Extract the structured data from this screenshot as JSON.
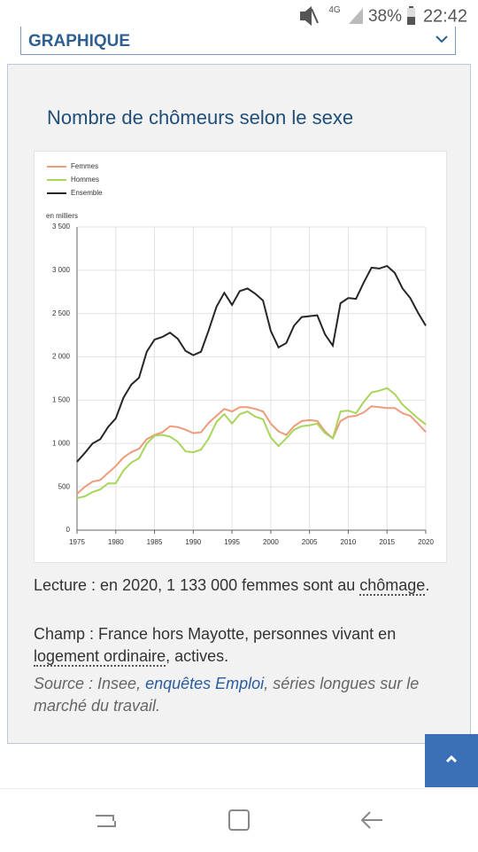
{
  "status_bar": {
    "network": "4G",
    "battery": "38%",
    "time": "22:42"
  },
  "dropdown": {
    "label": "GRAPHIQUE"
  },
  "chart_data": {
    "type": "line",
    "title": "Nombre de chômeurs selon le sexe",
    "y_unit": "en milliers",
    "x": [
      1975,
      1976,
      1977,
      1978,
      1979,
      1980,
      1981,
      1982,
      1983,
      1984,
      1985,
      1986,
      1987,
      1988,
      1989,
      1990,
      1991,
      1992,
      1993,
      1994,
      1995,
      1996,
      1997,
      1998,
      1999,
      2000,
      2001,
      2002,
      2003,
      2004,
      2005,
      2006,
      2007,
      2008,
      2009,
      2010,
      2011,
      2012,
      2013,
      2014,
      2015,
      2016,
      2017,
      2018,
      2019,
      2020
    ],
    "series": [
      {
        "name": "Femmes",
        "color": "#ee9b7b",
        "values": [
          420,
          500,
          560,
          580,
          660,
          740,
          840,
          900,
          940,
          1050,
          1100,
          1130,
          1200,
          1190,
          1160,
          1120,
          1130,
          1240,
          1320,
          1400,
          1370,
          1420,
          1420,
          1400,
          1370,
          1230,
          1140,
          1100,
          1200,
          1260,
          1270,
          1260,
          1140,
          1060,
          1260,
          1310,
          1320,
          1360,
          1430,
          1420,
          1410,
          1410,
          1350,
          1320,
          1230,
          1133
        ]
      },
      {
        "name": "Hommes",
        "color": "#a8d55c",
        "values": [
          370,
          390,
          440,
          470,
          540,
          540,
          690,
          780,
          830,
          1000,
          1090,
          1100,
          1080,
          1020,
          910,
          900,
          930,
          1060,
          1250,
          1340,
          1230,
          1340,
          1370,
          1310,
          1280,
          1070,
          970,
          1060,
          1160,
          1200,
          1210,
          1230,
          1120,
          1060,
          1370,
          1380,
          1350,
          1480,
          1590,
          1610,
          1640,
          1570,
          1450,
          1370,
          1290,
          1220
        ]
      },
      {
        "name": "Ensemble",
        "color": "#262626",
        "values": [
          790,
          890,
          1000,
          1050,
          1190,
          1290,
          1530,
          1680,
          1760,
          2060,
          2200,
          2230,
          2280,
          2210,
          2070,
          2020,
          2060,
          2310,
          2580,
          2740,
          2600,
          2760,
          2790,
          2730,
          2650,
          2300,
          2110,
          2160,
          2360,
          2460,
          2470,
          2480,
          2260,
          2130,
          2620,
          2680,
          2670,
          2860,
          3030,
          3020,
          3050,
          2970,
          2790,
          2680,
          2510,
          2360
        ]
      }
    ],
    "xlim": [
      1975,
      2020
    ],
    "xticks": [
      1975,
      1980,
      1985,
      1990,
      1995,
      2000,
      2005,
      2010,
      2015,
      2020
    ],
    "ylim": [
      0,
      3500
    ],
    "yticks": [
      0,
      500,
      {
        "value": 1000,
        "label": "1 000"
      },
      {
        "value": 1500,
        "label": "1 500"
      },
      {
        "value": 2000,
        "label": "2 000"
      },
      {
        "value": 2500,
        "label": "2 500"
      },
      {
        "value": 3000,
        "label": "3 000"
      },
      {
        "value": 3500,
        "label": "3 500"
      }
    ],
    "grid": true,
    "legend": "top-left"
  },
  "notes": {
    "lecture": {
      "text": "Lecture : en 2020, 1 133 000 femmes sont au",
      "term": "chômage",
      "end": "."
    },
    "champ": {
      "text": "Champ : France hors Mayotte, personnes vivant en",
      "term": "logement ordinaire",
      "end": ", actives."
    },
    "source": {
      "text": "Source : Insee,",
      "link": "enquêtes Emploi",
      "end": ", séries longues sur le marché du travail."
    }
  }
}
